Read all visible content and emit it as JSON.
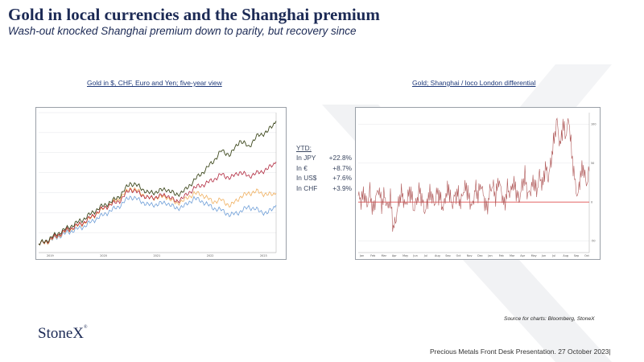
{
  "slide": {
    "title": "Gold in local currencies and the Shanghai premium",
    "subtitle": "Wash-out knocked Shanghai premium down to parity, but recovery since"
  },
  "left_caption": "Gold in $, CHF, Euro and Yen; five-year view",
  "right_caption": "Gold; Shanghai  / loco London differential",
  "ytd": {
    "title": "YTD:",
    "rows": [
      {
        "label": "In JPY",
        "value": "+22.8%"
      },
      {
        "label": "In €",
        "value": "+8.7%"
      },
      {
        "label": "In US$",
        "value": "+7.6%"
      },
      {
        "label": "In CHF",
        "value": "+3.9%"
      }
    ]
  },
  "source": "Source for charts: Bloomberg, StoneX",
  "logo": "StoneX",
  "footer": "Precious Metals Front Desk Presentation. 27 October 2023|",
  "colors": {
    "navy": "#1c2a55",
    "jpy": "#3f4a1f",
    "eur": "#b0253b",
    "usd": "#f0b060",
    "chf": "#6f9fd8",
    "premium_line": "#b05a5a",
    "zero_line": "#e05050"
  },
  "chart_data": [
    {
      "type": "line",
      "title": "Gold in $, CHF, Euro and Yen; five-year view",
      "x_ticks": [
        "2019",
        "2020",
        "2021",
        "2022",
        "2023"
      ],
      "series": [
        {
          "name": "JPY",
          "values": [
            100,
            105,
            112,
            118,
            124,
            130,
            138,
            145,
            150,
            158,
            172,
            168,
            160,
            162,
            165,
            158,
            163,
            175,
            185,
            196,
            210,
            205,
            222,
            215,
            228,
            232,
            245
          ]
        },
        {
          "name": "EUR",
          "values": [
            100,
            104,
            110,
            116,
            121,
            126,
            134,
            142,
            147,
            152,
            165,
            160,
            154,
            156,
            158,
            150,
            156,
            166,
            170,
            175,
            182,
            178,
            185,
            180,
            184,
            188,
            197
          ]
        },
        {
          "name": "USD",
          "values": [
            100,
            103,
            109,
            115,
            120,
            125,
            133,
            141,
            148,
            155,
            166,
            162,
            154,
            155,
            156,
            148,
            152,
            160,
            158,
            150,
            152,
            145,
            155,
            160,
            162,
            158,
            160
          ]
        },
        {
          "name": "CHF",
          "values": [
            100,
            103,
            108,
            113,
            117,
            121,
            128,
            134,
            140,
            146,
            156,
            152,
            146,
            147,
            149,
            142,
            145,
            154,
            150,
            143,
            140,
            134,
            138,
            144,
            140,
            136,
            146
          ]
        }
      ]
    },
    {
      "type": "line",
      "title": "Gold; Shanghai  / loco London differential",
      "x_ticks": [
        "Jan",
        "Feb",
        "Mar",
        "Apr",
        "May",
        "Jun",
        "Jul",
        "Aug",
        "Sep",
        "Oct",
        "Nov",
        "Dec",
        "Jan",
        "Feb",
        "Mar",
        "Apr",
        "May",
        "Jun",
        "Jul",
        "Aug",
        "Sep",
        "Oct"
      ],
      "y_ticks": [
        -50,
        0,
        50,
        100
      ],
      "ylim": [
        -65,
        115
      ],
      "series": [
        {
          "name": "",
          "values": [
            8,
            2,
            12,
            -5,
            15,
            -12,
            5,
            18,
            -3,
            10,
            -8,
            6,
            -35,
            -20,
            4,
            12,
            -6,
            8,
            14,
            -10,
            2,
            16,
            0,
            -14,
            8,
            11,
            -4,
            13,
            6,
            -9,
            10,
            18,
            -5,
            7,
            12,
            -2,
            15,
            20,
            3,
            -7,
            18,
            9,
            24,
            4,
            -10,
            14,
            22,
            6,
            30,
            12,
            -5,
            18,
            10,
            26,
            14,
            2,
            20,
            34,
            8,
            16,
            28,
            12,
            36,
            20,
            46,
            30,
            55,
            82,
            105,
            70,
            100,
            85,
            108,
            62,
            30,
            5,
            35,
            45,
            22,
            40
          ]
        }
      ]
    }
  ]
}
